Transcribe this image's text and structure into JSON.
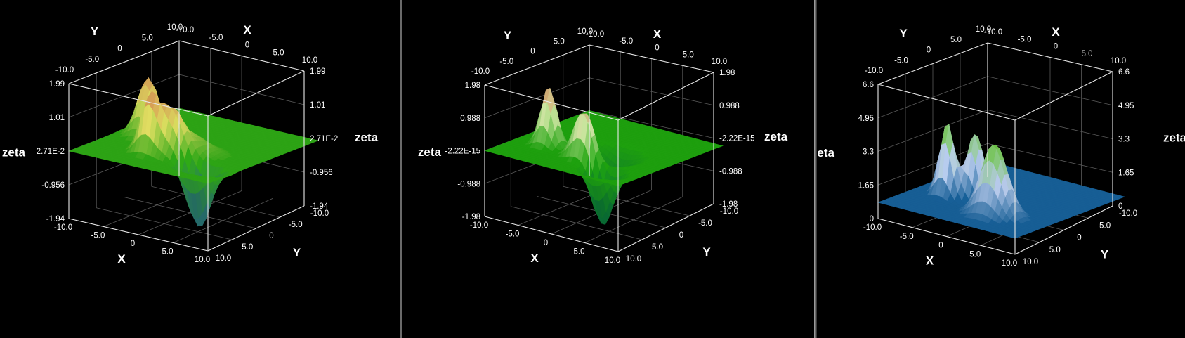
{
  "chart_data": [
    {
      "type": "surface3d",
      "title": "",
      "axes": {
        "x": "X",
        "y": "Y",
        "z": "zeta"
      },
      "x_range": [
        -10.0,
        10.0
      ],
      "y_range": [
        -10.0,
        10.0
      ],
      "z_range": [
        -1.94,
        1.99
      ],
      "x_ticks": [
        "-10.0",
        "-5.0",
        "0",
        "5.0",
        "10.0"
      ],
      "y_ticks": [
        "-10.0",
        "-5.0",
        "0",
        "5.0",
        "10.0"
      ],
      "z_ticks": [
        "-1.94",
        "-0.956",
        "2.71E-2",
        "1.01",
        "1.99"
      ],
      "colors": {
        "floor": "#33b818",
        "peak": "#e88858",
        "mid": "#f0f068",
        "trough": "#2a7a7a"
      }
    },
    {
      "type": "surface3d",
      "title": "",
      "axes": {
        "x": "X",
        "y": "Y",
        "z": "zeta"
      },
      "x_range": [
        -10.0,
        10.0
      ],
      "y_range": [
        -10.0,
        10.0
      ],
      "z_range": [
        -1.98,
        1.98
      ],
      "x_ticks": [
        "-10.0",
        "-5.0",
        "0",
        "5.0",
        "10.0"
      ],
      "y_ticks": [
        "-10.0",
        "-5.0",
        "0",
        "5.0",
        "10.0"
      ],
      "z_ticks": [
        "-1.98",
        "-0.988",
        "-2.22E-15",
        "0.988",
        "1.98"
      ],
      "colors": {
        "floor": "#22b410",
        "peak": "#e88858",
        "mid": "#e0f8b0",
        "trough": "#0a7a3a"
      }
    },
    {
      "type": "surface3d",
      "title": "",
      "axes": {
        "x": "X",
        "y": "Y",
        "z": "zeta"
      },
      "x_range": [
        -10.0,
        10.0
      ],
      "y_range": [
        -10.0,
        10.0
      ],
      "z_range": [
        0,
        6.6
      ],
      "x_ticks": [
        "-10.0",
        "-5.0",
        "0",
        "5.0",
        "10.0"
      ],
      "y_ticks": [
        "-10.0",
        "-5.0",
        "0",
        "5.0",
        "10.0"
      ],
      "z_ticks": [
        "0",
        "1.65",
        "3.3",
        "4.95",
        "6.6"
      ],
      "colors": {
        "floor": "#1a6aa8",
        "peak": "#7ad850",
        "mid": "#c8dcff",
        "trough": "#0010c0"
      }
    }
  ]
}
